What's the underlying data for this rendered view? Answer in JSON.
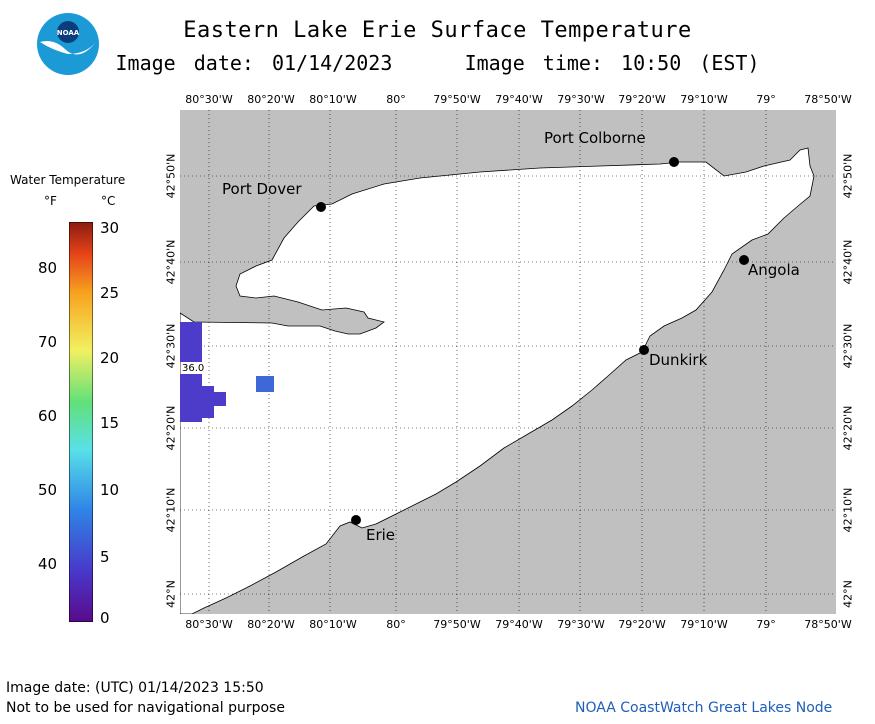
{
  "title": "Eastern Lake Erie Surface Temperature",
  "image_date_label": "Image date: 01/14/2023",
  "image_time_label": "Image time: 10:50 (EST)",
  "logo": {
    "text": "NOAA",
    "icon": "noaa-logo-icon",
    "colors": [
      "#1b9ad6",
      "#ffffff",
      "#0b3c7d"
    ]
  },
  "longitude_ticks": [
    "80°30'W",
    "80°20'W",
    "80°10'W",
    "80°",
    "79°50'W",
    "79°40'W",
    "79°30'W",
    "79°20'W",
    "79°10'W",
    "79°",
    "78°50'W"
  ],
  "latitude_ticks": [
    "42°50'N",
    "42°40'N",
    "42°30'N",
    "42°20'N",
    "42°10'N",
    "42°N"
  ],
  "legend": {
    "title": "Water Temperature",
    "unit_f": "°F",
    "unit_c": "°C",
    "f_ticks": [
      "80",
      "70",
      "60",
      "50",
      "40"
    ],
    "c_ticks": [
      "30",
      "25",
      "20",
      "15",
      "10",
      "5",
      "0"
    ]
  },
  "cities": [
    {
      "name": "Port Colborne"
    },
    {
      "name": "Port Dover"
    },
    {
      "name": "Angola"
    },
    {
      "name": "Dunkirk"
    },
    {
      "name": "Erie"
    }
  ],
  "temperature_label": "36.0",
  "colors": {
    "land": "#c0c0c0",
    "water": "#ffffff",
    "cold_patch": "#4d3cc9",
    "cold_patch_2": "#3e67d8",
    "footer_link": "#1f5fb8"
  },
  "footer": {
    "utc_date": "Image date: (UTC) 01/14/2023  15:50",
    "disclaimer": "Not to be used for navigational purpose",
    "source": "NOAA CoastWatch Great Lakes Node"
  }
}
